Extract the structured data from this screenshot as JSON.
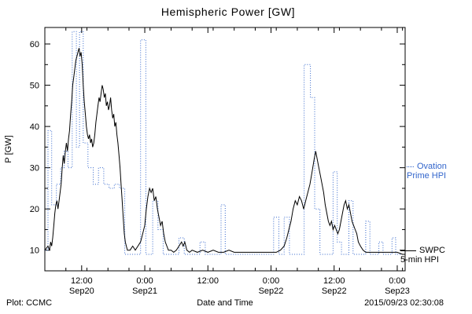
{
  "colors": {
    "ovation": "#3366cc",
    "swpc": "#000000",
    "background": "#ffffff"
  },
  "legend": {
    "ovation": {
      "line1": "Ovation",
      "line2": "Prime HPI"
    },
    "swpc": {
      "line1": "SWPC",
      "line2": "5-min HPI"
    }
  },
  "footer": {
    "left": "Plot: CCMC",
    "right": "2015/09/23 02:30:08"
  },
  "chart_data": {
    "type": "line",
    "title": "Hemispheric Power [GW]",
    "xlabel": "Date and Time",
    "ylabel": "P [GW]",
    "x_unit": "hours since 2015-09-20 05:00 UT",
    "xlim": [
      0,
      68.5
    ],
    "ylim": [
      5,
      64
    ],
    "grid": false,
    "legend_position": "right-outside",
    "y_ticks": [
      10,
      20,
      30,
      40,
      50,
      60
    ],
    "x_ticks": [
      {
        "t": 7,
        "time": "12:00",
        "date": "Sep20"
      },
      {
        "t": 19,
        "time": "0:00",
        "date": "Sep21"
      },
      {
        "t": 31,
        "time": "12:00",
        "date": ""
      },
      {
        "t": 43,
        "time": "0:00",
        "date": "Sep22"
      },
      {
        "t": 55,
        "time": "12:00",
        "date": "Sep22"
      },
      {
        "t": 67,
        "time": "0:00",
        "date": "Sep23"
      }
    ],
    "series": [
      {
        "name": "Ovation Prime HPI",
        "style": "dotted-step",
        "color": "#3366cc",
        "points": [
          [
            0,
            10
          ],
          [
            0.6,
            39
          ],
          [
            1.3,
            21
          ],
          [
            2.2,
            26
          ],
          [
            3.0,
            30
          ],
          [
            3.7,
            34
          ],
          [
            4.4,
            30
          ],
          [
            5.2,
            63
          ],
          [
            6.0,
            35
          ],
          [
            6.6,
            63
          ],
          [
            7.3,
            36
          ],
          [
            8.2,
            30
          ],
          [
            9.2,
            26
          ],
          [
            10.2,
            30
          ],
          [
            11.2,
            26
          ],
          [
            12.2,
            25
          ],
          [
            13.2,
            26
          ],
          [
            14.2,
            25
          ],
          [
            15.2,
            9
          ],
          [
            18.2,
            61
          ],
          [
            19.2,
            9
          ],
          [
            20.5,
            22
          ],
          [
            21.5,
            15
          ],
          [
            22.5,
            9
          ],
          [
            25.5,
            13
          ],
          [
            26.5,
            9
          ],
          [
            29.5,
            12
          ],
          [
            30.5,
            9
          ],
          [
            33.5,
            21
          ],
          [
            34.3,
            9
          ],
          [
            43.5,
            18
          ],
          [
            44.5,
            9
          ],
          [
            45.5,
            18
          ],
          [
            46.5,
            9
          ],
          [
            49.3,
            55
          ],
          [
            50.5,
            47
          ],
          [
            51.3,
            20
          ],
          [
            52.3,
            9
          ],
          [
            54.8,
            29
          ],
          [
            55.6,
            12
          ],
          [
            56.4,
            9
          ],
          [
            57.8,
            22
          ],
          [
            58.6,
            9
          ],
          [
            61.0,
            17
          ],
          [
            61.8,
            9
          ],
          [
            63.5,
            12
          ],
          [
            64.3,
            9
          ],
          [
            66.0,
            13
          ],
          [
            66.7,
            9
          ]
        ]
      },
      {
        "name": "SWPC 5-min HPI",
        "style": "solid",
        "color": "#000000",
        "points": [
          [
            0,
            10
          ],
          [
            0.3,
            10.5
          ],
          [
            0.6,
            11
          ],
          [
            0.9,
            10
          ],
          [
            1.1,
            12
          ],
          [
            1.3,
            11
          ],
          [
            1.5,
            13
          ],
          [
            1.7,
            16
          ],
          [
            1.9,
            19
          ],
          [
            2.1,
            21
          ],
          [
            2.3,
            22
          ],
          [
            2.5,
            20
          ],
          [
            2.7,
            22
          ],
          [
            2.9,
            24
          ],
          [
            3.1,
            26
          ],
          [
            3.3,
            30
          ],
          [
            3.5,
            33
          ],
          [
            3.7,
            31
          ],
          [
            3.9,
            34
          ],
          [
            4.1,
            36
          ],
          [
            4.3,
            34
          ],
          [
            4.5,
            37
          ],
          [
            4.7,
            39
          ],
          [
            4.9,
            43
          ],
          [
            5.1,
            46
          ],
          [
            5.3,
            50
          ],
          [
            5.5,
            52
          ],
          [
            5.7,
            54
          ],
          [
            5.9,
            56
          ],
          [
            6.1,
            57
          ],
          [
            6.3,
            58
          ],
          [
            6.5,
            59
          ],
          [
            6.7,
            57
          ],
          [
            6.9,
            58
          ],
          [
            7.1,
            55
          ],
          [
            7.3,
            50
          ],
          [
            7.5,
            46
          ],
          [
            7.7,
            43
          ],
          [
            7.9,
            40
          ],
          [
            8.1,
            38
          ],
          [
            8.3,
            37
          ],
          [
            8.5,
            38
          ],
          [
            8.7,
            36
          ],
          [
            8.9,
            37
          ],
          [
            9.1,
            35
          ],
          [
            9.3,
            36
          ],
          [
            9.5,
            38
          ],
          [
            9.7,
            41
          ],
          [
            9.9,
            43
          ],
          [
            10.1,
            45
          ],
          [
            10.3,
            47
          ],
          [
            10.5,
            46
          ],
          [
            10.7,
            48
          ],
          [
            10.9,
            50
          ],
          [
            11.1,
            49
          ],
          [
            11.3,
            47
          ],
          [
            11.5,
            48
          ],
          [
            11.7,
            45
          ],
          [
            11.9,
            46
          ],
          [
            12.1,
            44
          ],
          [
            12.3,
            45
          ],
          [
            12.5,
            47
          ],
          [
            12.7,
            44
          ],
          [
            12.9,
            42
          ],
          [
            13.1,
            43
          ],
          [
            13.3,
            40
          ],
          [
            13.5,
            41
          ],
          [
            13.7,
            38
          ],
          [
            13.9,
            36
          ],
          [
            14.1,
            33
          ],
          [
            14.3,
            30
          ],
          [
            14.5,
            26
          ],
          [
            14.7,
            22
          ],
          [
            14.9,
            18
          ],
          [
            15.1,
            14
          ],
          [
            15.3,
            12
          ],
          [
            15.5,
            11
          ],
          [
            15.7,
            10
          ],
          [
            16.2,
            10
          ],
          [
            16.7,
            11
          ],
          [
            17.2,
            10
          ],
          [
            17.7,
            11
          ],
          [
            18.2,
            12
          ],
          [
            18.6,
            14
          ],
          [
            19.0,
            16
          ],
          [
            19.3,
            20
          ],
          [
            19.6,
            23
          ],
          [
            19.9,
            25
          ],
          [
            20.2,
            24
          ],
          [
            20.5,
            25
          ],
          [
            20.8,
            22
          ],
          [
            21.1,
            23
          ],
          [
            21.4,
            20
          ],
          [
            21.7,
            18
          ],
          [
            22.0,
            16
          ],
          [
            22.3,
            17
          ],
          [
            22.6,
            14
          ],
          [
            22.9,
            12
          ],
          [
            23.2,
            11
          ],
          [
            23.5,
            10
          ],
          [
            24.0,
            10
          ],
          [
            24.5,
            9.5
          ],
          [
            25.0,
            10
          ],
          [
            25.5,
            11
          ],
          [
            26.0,
            12
          ],
          [
            26.3,
            11
          ],
          [
            26.6,
            12
          ],
          [
            27.0,
            10
          ],
          [
            27.5,
            9.5
          ],
          [
            28.0,
            10
          ],
          [
            29.0,
            9.5
          ],
          [
            30.0,
            10
          ],
          [
            31.0,
            9.5
          ],
          [
            32.0,
            10
          ],
          [
            33.0,
            9.5
          ],
          [
            34.0,
            9.5
          ],
          [
            35.0,
            10
          ],
          [
            36.0,
            9.5
          ],
          [
            37.0,
            9.5
          ],
          [
            38.0,
            9.5
          ],
          [
            39.0,
            9.5
          ],
          [
            40.0,
            9.5
          ],
          [
            41.0,
            9.5
          ],
          [
            42.0,
            9.5
          ],
          [
            43.0,
            9.5
          ],
          [
            44.0,
            9.5
          ],
          [
            44.8,
            10
          ],
          [
            45.5,
            11
          ],
          [
            46.0,
            13
          ],
          [
            46.4,
            15
          ],
          [
            46.8,
            17
          ],
          [
            47.2,
            20
          ],
          [
            47.6,
            22
          ],
          [
            48.0,
            21
          ],
          [
            48.4,
            23
          ],
          [
            48.8,
            22
          ],
          [
            49.2,
            20
          ],
          [
            49.6,
            22
          ],
          [
            50.0,
            24
          ],
          [
            50.4,
            26
          ],
          [
            50.8,
            29
          ],
          [
            51.2,
            32
          ],
          [
            51.5,
            34
          ],
          [
            51.8,
            32
          ],
          [
            52.1,
            30
          ],
          [
            52.4,
            28
          ],
          [
            52.7,
            26
          ],
          [
            53.0,
            24
          ],
          [
            53.3,
            21
          ],
          [
            53.6,
            19
          ],
          [
            53.9,
            17
          ],
          [
            54.2,
            16
          ],
          [
            54.5,
            17
          ],
          [
            54.8,
            15
          ],
          [
            55.1,
            16
          ],
          [
            55.4,
            15
          ],
          [
            55.7,
            14
          ],
          [
            56.0,
            15
          ],
          [
            56.3,
            17
          ],
          [
            56.6,
            19
          ],
          [
            56.9,
            21
          ],
          [
            57.2,
            22
          ],
          [
            57.5,
            20
          ],
          [
            57.8,
            21
          ],
          [
            58.1,
            19
          ],
          [
            58.4,
            17
          ],
          [
            58.7,
            16
          ],
          [
            59.0,
            15
          ],
          [
            59.3,
            14
          ],
          [
            59.6,
            12
          ],
          [
            60.0,
            11
          ],
          [
            60.5,
            10
          ],
          [
            61.0,
            9.5
          ],
          [
            62.0,
            9.5
          ],
          [
            63.0,
            9.5
          ],
          [
            64.0,
            9.5
          ],
          [
            65.0,
            9.5
          ],
          [
            66.0,
            9.5
          ],
          [
            67.0,
            9.5
          ],
          [
            68.0,
            9
          ],
          [
            68.5,
            9
          ]
        ]
      }
    ]
  }
}
